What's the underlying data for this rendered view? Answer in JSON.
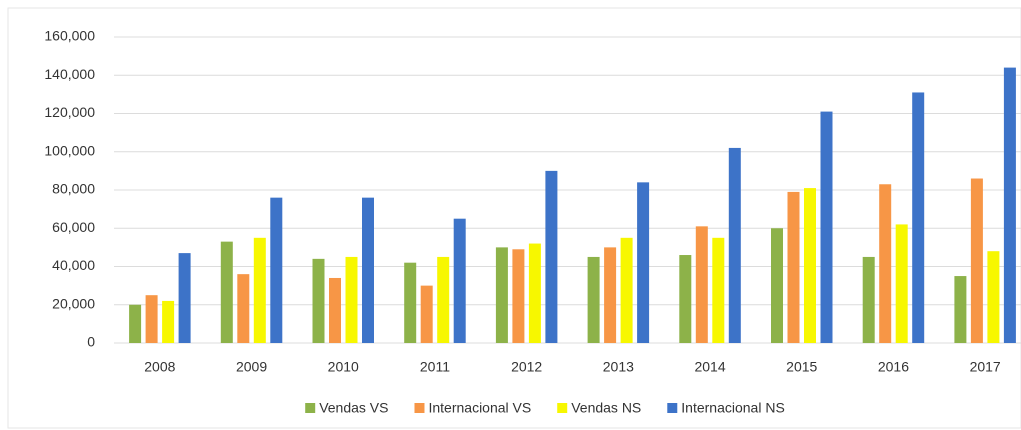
{
  "chart_data": {
    "type": "bar",
    "categories": [
      "2008",
      "2009",
      "2010",
      "2011",
      "2012",
      "2013",
      "2014",
      "2015",
      "2016",
      "2017"
    ],
    "series": [
      {
        "name": "Vendas VS",
        "color": "#8db249",
        "values": [
          20000,
          53000,
          44000,
          42000,
          50000,
          45000,
          46000,
          60000,
          45000,
          35000
        ]
      },
      {
        "name": "Internacional VS",
        "color": "#f79646",
        "values": [
          25000,
          36000,
          34000,
          30000,
          49000,
          50000,
          61000,
          79000,
          83000,
          86000
        ]
      },
      {
        "name": "Vendas NS",
        "color": "#f7f700",
        "values": [
          22000,
          55000,
          45000,
          45000,
          52000,
          55000,
          55000,
          81000,
          62000,
          48000
        ]
      },
      {
        "name": "Internacional NS",
        "color": "#3d73c8",
        "values": [
          47000,
          76000,
          76000,
          65000,
          90000,
          84000,
          102000,
          121000,
          131000,
          144000
        ]
      }
    ],
    "ylim": [
      0,
      160000
    ],
    "yticks": [
      0,
      {
        "value": 20000,
        "label": "20,000"
      },
      {
        "value": 40000,
        "label": "40,000"
      },
      {
        "value": 60000,
        "label": "60,000"
      },
      {
        "value": 80000,
        "label": "80,000"
      },
      {
        "value": 100000,
        "label": "100,000"
      },
      {
        "value": 120000,
        "label": "120,000"
      },
      {
        "value": 140000,
        "label": "140,000"
      },
      {
        "value": 160000,
        "label": "160,000"
      }
    ],
    "grid": true,
    "legend": "bottom"
  }
}
